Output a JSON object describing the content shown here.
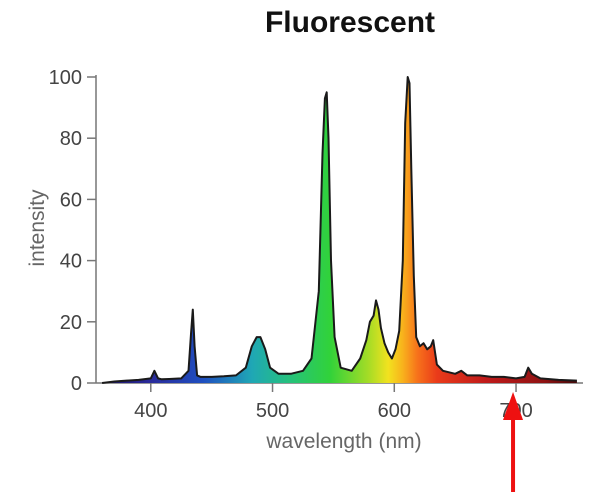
{
  "chart_data": {
    "type": "area",
    "title": "Fluorescent",
    "xlabel": "wavelength (nm)",
    "ylabel": "intensity",
    "xlim": [
      355,
      755
    ],
    "ylim": [
      0,
      100
    ],
    "xticks": [
      400,
      500,
      600,
      700
    ],
    "yticks": [
      0,
      20,
      40,
      60,
      80,
      100
    ],
    "grid": false,
    "fill": "visible-spectrum-gradient",
    "series": [
      {
        "x": [
          360,
          370,
          380,
          390,
          400,
          403,
          406,
          409,
          415,
          425,
          431,
          433,
          434.5,
          436,
          438,
          441,
          450,
          460,
          470,
          478,
          483,
          487,
          490,
          494,
          498,
          505,
          515,
          525,
          532,
          538,
          541,
          543,
          544.5,
          546,
          548,
          551,
          556,
          565,
          572,
          577,
          580,
          583,
          585,
          587,
          589,
          592,
          595,
          598,
          601,
          604,
          607,
          609,
          611,
          612.5,
          614,
          616,
          618,
          621,
          624,
          627,
          630,
          632,
          635,
          640,
          650,
          655,
          660,
          670,
          680,
          690,
          700,
          707,
          710,
          713,
          720,
          735,
          750
        ],
        "y": [
          0,
          0.5,
          0.8,
          1,
          1.5,
          4,
          1.5,
          1.2,
          1.3,
          1.5,
          4,
          16,
          24,
          12,
          2.5,
          2,
          2,
          2.2,
          2.5,
          5,
          12,
          15,
          15,
          11,
          5,
          3,
          3,
          4,
          8,
          30,
          75,
          93,
          95,
          80,
          40,
          15,
          5,
          4,
          8,
          14,
          20,
          22,
          27,
          24,
          18,
          13,
          10,
          8,
          11,
          17,
          40,
          85,
          100,
          98,
          70,
          35,
          15,
          12,
          13,
          11,
          12,
          14,
          6,
          4,
          3,
          4,
          2.5,
          2.5,
          2,
          2,
          1.5,
          2,
          5,
          3,
          1.5,
          1,
          0.8
        ]
      }
    ],
    "annotations": [
      {
        "type": "arrow",
        "color": "#ee1111",
        "points_to_x": 700,
        "direction": "up"
      }
    ]
  },
  "colors": {
    "outline": "#1a1a1a",
    "axis": "#777777",
    "arrow": "#ee1111"
  }
}
